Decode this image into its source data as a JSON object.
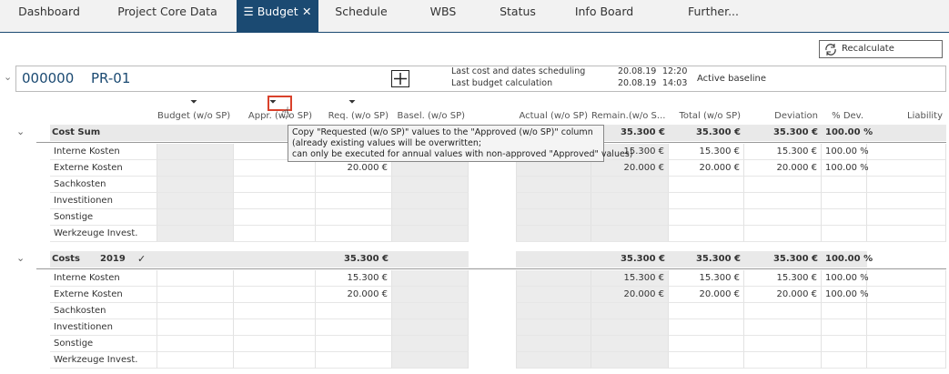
{
  "tabs": [
    {
      "label": "Dashboard"
    },
    {
      "label": "Project Core Data"
    },
    {
      "label": "Budget",
      "active": true
    },
    {
      "label": "Schedule"
    },
    {
      "label": "WBS"
    },
    {
      "label": "Status"
    },
    {
      "label": "Info Board"
    },
    {
      "label": "Further..."
    }
  ],
  "toolbar": {
    "button": "Recalculate"
  },
  "project": {
    "number": "000000",
    "name": "PR-01",
    "info": [
      {
        "label": "Last cost and dates scheduling",
        "date": "20.08.19",
        "time": "12:20"
      },
      {
        "label": "Last budget calculation",
        "date": "20.08.19",
        "time": "14:03"
      }
    ],
    "baseline": "Active baseline"
  },
  "columns": [
    "Budget (w/o SP)",
    "Appr. (w/o SP)",
    "Req. (w/o SP)",
    "Basel. (w/o SP)",
    "Actual (w/o SP)",
    "Remain.(w/o S...",
    "Total (w/o SP)",
    "Deviation",
    "% Dev.",
    "Liability"
  ],
  "tooltip": [
    "Copy \"Requested (w/o SP)\" values to the \"Approved (w/o SP)\" column",
    "(already existing values will be overwritten;",
    "can only be executed for annual values with non-approved \"Approved\" values)"
  ],
  "sections": [
    {
      "label": "Cost Sum",
      "cells": [
        null,
        null,
        null,
        null,
        null,
        "35.300 €",
        "35.300 €",
        "35.300 €",
        "100.00 %",
        null
      ],
      "rows": [
        {
          "label": "Interne Kosten",
          "cells": [
            null,
            null,
            null,
            null,
            null,
            "15.300 €",
            "15.300 €",
            "15.300 €",
            "100.00 %",
            null
          ]
        },
        {
          "label": "Externe Kosten",
          "cells": [
            null,
            null,
            "20.000 €",
            null,
            null,
            "20.000 €",
            "20.000 €",
            "20.000 €",
            "100.00 %",
            null
          ]
        },
        {
          "label": "Sachkosten",
          "cells": [
            null,
            null,
            null,
            null,
            null,
            null,
            null,
            null,
            null,
            null
          ]
        },
        {
          "label": "Investitionen",
          "cells": [
            null,
            null,
            null,
            null,
            null,
            null,
            null,
            null,
            null,
            null
          ]
        },
        {
          "label": "Sonstige",
          "cells": [
            null,
            null,
            null,
            null,
            null,
            null,
            null,
            null,
            null,
            null
          ]
        },
        {
          "label": "Werkzeuge Invest.",
          "cells": [
            null,
            null,
            null,
            null,
            null,
            null,
            null,
            null,
            null,
            null
          ]
        }
      ]
    },
    {
      "label": "Costs",
      "year": "2019",
      "cells": [
        null,
        null,
        "35.300 €",
        null,
        null,
        "35.300 €",
        "35.300 €",
        "35.300 €",
        "100.00 %",
        null
      ],
      "rows": [
        {
          "label": "Interne Kosten",
          "cells": [
            null,
            null,
            "15.300 €",
            null,
            null,
            "15.300 €",
            "15.300 €",
            "15.300 €",
            "100.00 %",
            null
          ]
        },
        {
          "label": "Externe Kosten",
          "cells": [
            null,
            null,
            "20.000 €",
            null,
            null,
            "20.000 €",
            "20.000 €",
            "20.000 €",
            "100.00 %",
            null
          ]
        },
        {
          "label": "Sachkosten",
          "cells": [
            null,
            null,
            null,
            null,
            null,
            null,
            null,
            null,
            null,
            null
          ]
        },
        {
          "label": "Investitionen",
          "cells": [
            null,
            null,
            null,
            null,
            null,
            null,
            null,
            null,
            null,
            null
          ]
        },
        {
          "label": "Sonstige",
          "cells": [
            null,
            null,
            null,
            null,
            null,
            null,
            null,
            null,
            null,
            null
          ]
        },
        {
          "label": "Werkzeuge Invest.",
          "cells": [
            null,
            null,
            null,
            null,
            null,
            null,
            null,
            null,
            null,
            null
          ]
        }
      ]
    }
  ]
}
